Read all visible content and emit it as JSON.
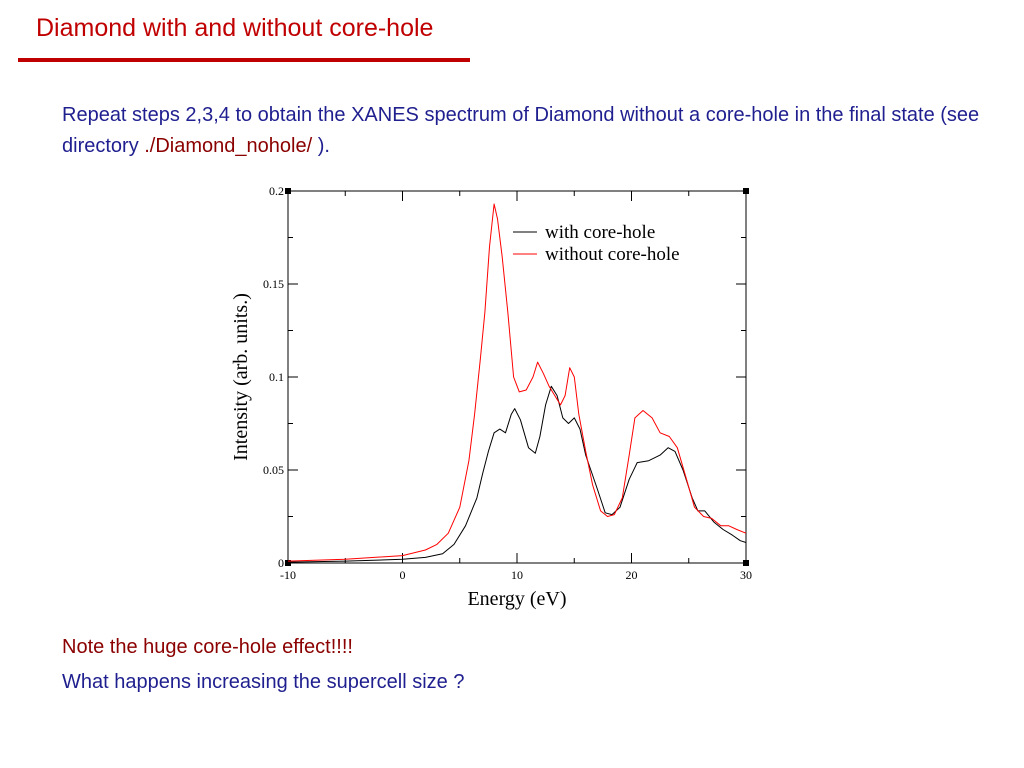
{
  "slide": {
    "title": "Diamond with and without core-hole",
    "paragraph_part1": "Repeat steps 2,3,4 to obtain the XANES spectrum of Diamond without a core-hole in the final state (see directory ",
    "directory": "./Diamond_nohole/",
    "paragraph_part2": " ).",
    "note": "Note the huge core-hole effect!!!!",
    "question": "What happens increasing the supercell size ?"
  },
  "colors": {
    "title": "#c00000",
    "body_text": "#1f1f8f",
    "note_text": "#8b0000",
    "series_with": "#000000",
    "series_without": "#ff0000"
  },
  "chart_data": {
    "type": "line",
    "xlabel": "Energy (eV)",
    "ylabel": "Intensity (arb. units.)",
    "xlim": [
      -10,
      30
    ],
    "ylim": [
      0,
      0.2
    ],
    "x_ticks": [
      "-10",
      "0",
      "10",
      "20",
      "30"
    ],
    "y_ticks": [
      "0",
      "0.05",
      "0.1",
      "0.15",
      "0.2"
    ],
    "grid": false,
    "legend_position": "top-right",
    "series": [
      {
        "name": "with core-hole",
        "color": "#000000",
        "points": [
          [
            -10,
            0.0005
          ],
          [
            -5,
            0.001
          ],
          [
            0,
            0.002
          ],
          [
            2,
            0.003
          ],
          [
            3.5,
            0.005
          ],
          [
            4.5,
            0.01
          ],
          [
            5.5,
            0.02
          ],
          [
            6.5,
            0.035
          ],
          [
            7,
            0.048
          ],
          [
            7.5,
            0.06
          ],
          [
            8,
            0.07
          ],
          [
            8.5,
            0.072
          ],
          [
            9,
            0.07
          ],
          [
            9.5,
            0.08
          ],
          [
            9.8,
            0.083
          ],
          [
            10.3,
            0.077
          ],
          [
            11,
            0.062
          ],
          [
            11.6,
            0.059
          ],
          [
            12,
            0.068
          ],
          [
            12.5,
            0.085
          ],
          [
            13,
            0.095
          ],
          [
            13.5,
            0.09
          ],
          [
            14,
            0.078
          ],
          [
            14.5,
            0.075
          ],
          [
            15,
            0.078
          ],
          [
            15.5,
            0.072
          ],
          [
            16,
            0.058
          ],
          [
            17,
            0.04
          ],
          [
            17.7,
            0.027
          ],
          [
            18.3,
            0.026
          ],
          [
            19,
            0.03
          ],
          [
            19.8,
            0.045
          ],
          [
            20.5,
            0.054
          ],
          [
            21.5,
            0.055
          ],
          [
            22.5,
            0.058
          ],
          [
            23.2,
            0.062
          ],
          [
            23.8,
            0.06
          ],
          [
            24.5,
            0.05
          ],
          [
            25.3,
            0.035
          ],
          [
            25.8,
            0.028
          ],
          [
            26.4,
            0.028
          ],
          [
            27.2,
            0.022
          ],
          [
            28,
            0.018
          ],
          [
            28.8,
            0.015
          ],
          [
            29.5,
            0.012
          ],
          [
            30,
            0.011
          ]
        ]
      },
      {
        "name": "without core-hole",
        "color": "#ff0000",
        "points": [
          [
            -10,
            0.001
          ],
          [
            -5,
            0.002
          ],
          [
            0,
            0.004
          ],
          [
            2,
            0.007
          ],
          [
            3,
            0.01
          ],
          [
            4,
            0.016
          ],
          [
            5,
            0.03
          ],
          [
            5.8,
            0.055
          ],
          [
            6.3,
            0.08
          ],
          [
            6.8,
            0.11
          ],
          [
            7.2,
            0.135
          ],
          [
            7.6,
            0.17
          ],
          [
            8,
            0.193
          ],
          [
            8.3,
            0.185
          ],
          [
            8.7,
            0.165
          ],
          [
            9.2,
            0.135
          ],
          [
            9.7,
            0.1
          ],
          [
            10.2,
            0.092
          ],
          [
            10.8,
            0.093
          ],
          [
            11.4,
            0.1
          ],
          [
            11.8,
            0.108
          ],
          [
            12.3,
            0.102
          ],
          [
            12.8,
            0.095
          ],
          [
            13.3,
            0.09
          ],
          [
            13.8,
            0.085
          ],
          [
            14.2,
            0.09
          ],
          [
            14.6,
            0.105
          ],
          [
            15,
            0.1
          ],
          [
            15.4,
            0.08
          ],
          [
            16,
            0.06
          ],
          [
            16.6,
            0.042
          ],
          [
            17.3,
            0.028
          ],
          [
            17.9,
            0.025
          ],
          [
            18.5,
            0.026
          ],
          [
            19.2,
            0.035
          ],
          [
            19.8,
            0.058
          ],
          [
            20.3,
            0.078
          ],
          [
            21,
            0.082
          ],
          [
            21.8,
            0.078
          ],
          [
            22.5,
            0.07
          ],
          [
            23.3,
            0.068
          ],
          [
            24,
            0.062
          ],
          [
            24.8,
            0.045
          ],
          [
            25.5,
            0.03
          ],
          [
            26.3,
            0.025
          ],
          [
            27,
            0.024
          ],
          [
            27.8,
            0.02
          ],
          [
            28.5,
            0.02
          ],
          [
            29.2,
            0.018
          ],
          [
            30,
            0.016
          ]
        ]
      }
    ]
  }
}
